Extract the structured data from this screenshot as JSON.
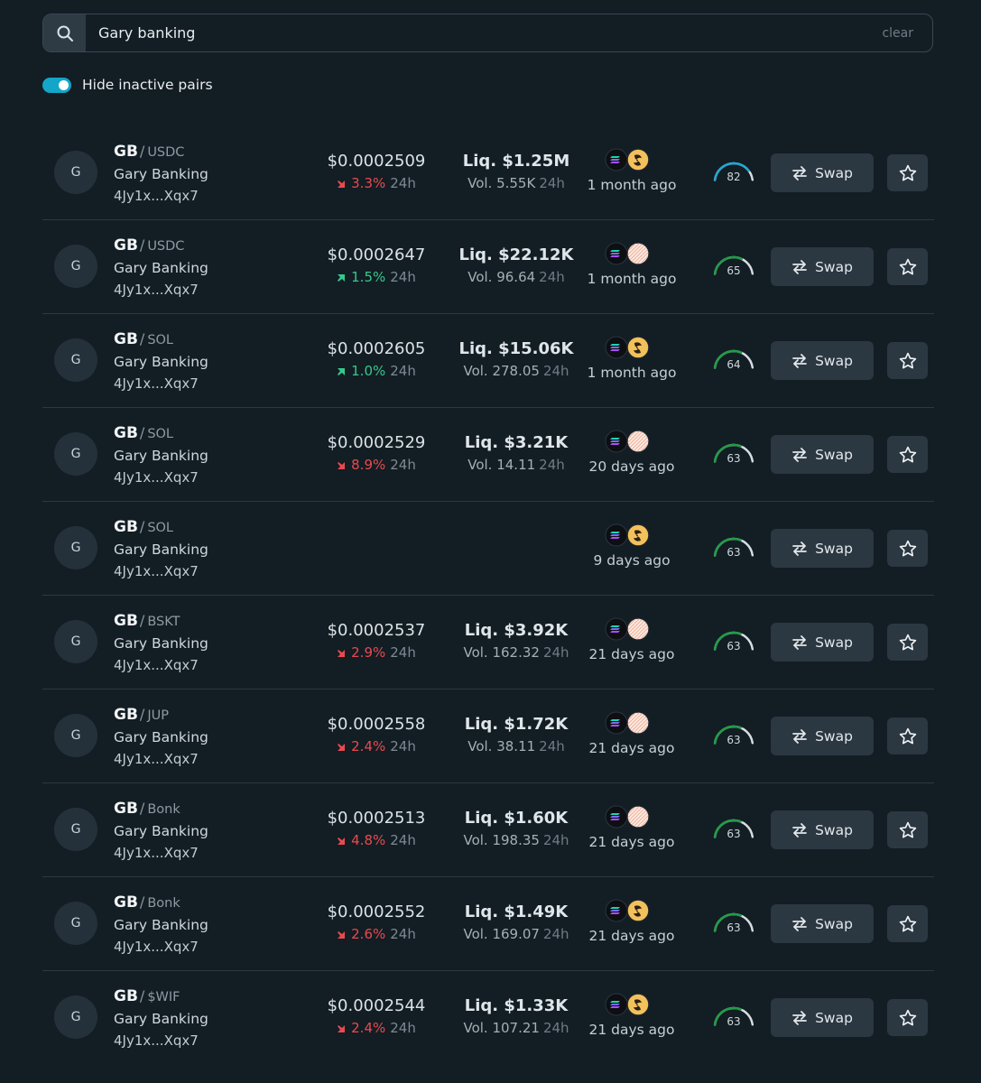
{
  "search": {
    "value": "Gary banking",
    "clear_label": "clear",
    "icon": "search-icon"
  },
  "filters": {
    "hide_inactive_label": "Hide inactive pairs",
    "hide_inactive_on": true,
    "toggle_color": "#13a6c9"
  },
  "colors": {
    "down": "#e84a4f",
    "up": "#34c98b",
    "gauge_blue": "#1ea7d4",
    "gauge_green": "#1f9d46"
  },
  "pairs": [
    {
      "avatar": "G",
      "base": "GB",
      "slash": "/",
      "quote": "USDC",
      "name": "Gary Banking",
      "address": "4Jy1x...Xqx7",
      "price": "$0.0002509",
      "change": "3.3%",
      "direction": "down",
      "period": "24h",
      "liquidity": "Liq. $1.25M",
      "volume": "Vol. 5.55K",
      "vol_period": "24h",
      "dex": [
        "solana-icon",
        "yellow-dex-icon"
      ],
      "age": "1 month ago",
      "score": "82",
      "score_fraction": 0.82,
      "score_color": "blue",
      "swap_label": "Swap"
    },
    {
      "avatar": "G",
      "base": "GB",
      "slash": "/",
      "quote": "USDC",
      "name": "Gary Banking",
      "address": "4Jy1x...Xqx7",
      "price": "$0.0002647",
      "change": "1.5%",
      "direction": "up",
      "period": "24h",
      "liquidity": "Liq. $22.12K",
      "volume": "Vol. 96.64",
      "vol_period": "24h",
      "dex": [
        "solana-icon",
        "striped-dex-icon"
      ],
      "age": "1 month ago",
      "score": "65",
      "score_fraction": 0.65,
      "score_color": "green",
      "swap_label": "Swap"
    },
    {
      "avatar": "G",
      "base": "GB",
      "slash": "/",
      "quote": "SOL",
      "name": "Gary Banking",
      "address": "4Jy1x...Xqx7",
      "price": "$0.0002605",
      "change": "1.0%",
      "direction": "up",
      "period": "24h",
      "liquidity": "Liq. $15.06K",
      "volume": "Vol. 278.05",
      "vol_period": "24h",
      "dex": [
        "solana-icon",
        "yellow-dex-icon"
      ],
      "age": "1 month ago",
      "score": "64",
      "score_fraction": 0.64,
      "score_color": "green",
      "swap_label": "Swap"
    },
    {
      "avatar": "G",
      "base": "GB",
      "slash": "/",
      "quote": "SOL",
      "name": "Gary Banking",
      "address": "4Jy1x...Xqx7",
      "price": "$0.0002529",
      "change": "8.9%",
      "direction": "down",
      "period": "24h",
      "liquidity": "Liq. $3.21K",
      "volume": "Vol. 14.11",
      "vol_period": "24h",
      "dex": [
        "solana-icon",
        "striped-dex-icon"
      ],
      "age": "20 days ago",
      "score": "63",
      "score_fraction": 0.63,
      "score_color": "green",
      "swap_label": "Swap"
    },
    {
      "avatar": "G",
      "base": "GB",
      "slash": "/",
      "quote": "SOL",
      "name": "Gary Banking",
      "address": "4Jy1x...Xqx7",
      "price": "",
      "change": "",
      "direction": "none",
      "period": "",
      "liquidity": "",
      "volume": "",
      "vol_period": "",
      "dex": [
        "solana-icon",
        "yellow-dex-icon"
      ],
      "age": "9 days ago",
      "score": "63",
      "score_fraction": 0.63,
      "score_color": "green",
      "swap_label": "Swap"
    },
    {
      "avatar": "G",
      "base": "GB",
      "slash": "/",
      "quote": "BSKT",
      "name": "Gary Banking",
      "address": "4Jy1x...Xqx7",
      "price": "$0.0002537",
      "change": "2.9%",
      "direction": "down",
      "period": "24h",
      "liquidity": "Liq. $3.92K",
      "volume": "Vol. 162.32",
      "vol_period": "24h",
      "dex": [
        "solana-icon",
        "striped-dex-icon"
      ],
      "age": "21 days ago",
      "score": "63",
      "score_fraction": 0.63,
      "score_color": "green",
      "swap_label": "Swap"
    },
    {
      "avatar": "G",
      "base": "GB",
      "slash": "/",
      "quote": "JUP",
      "name": "Gary Banking",
      "address": "4Jy1x...Xqx7",
      "price": "$0.0002558",
      "change": "2.4%",
      "direction": "down",
      "period": "24h",
      "liquidity": "Liq. $1.72K",
      "volume": "Vol. 38.11",
      "vol_period": "24h",
      "dex": [
        "solana-icon",
        "striped-dex-icon"
      ],
      "age": "21 days ago",
      "score": "63",
      "score_fraction": 0.63,
      "score_color": "green",
      "swap_label": "Swap"
    },
    {
      "avatar": "G",
      "base": "GB",
      "slash": "/",
      "quote": "Bonk",
      "name": "Gary Banking",
      "address": "4Jy1x...Xqx7",
      "price": "$0.0002513",
      "change": "4.8%",
      "direction": "down",
      "period": "24h",
      "liquidity": "Liq. $1.60K",
      "volume": "Vol. 198.35",
      "vol_period": "24h",
      "dex": [
        "solana-icon",
        "striped-dex-icon"
      ],
      "age": "21 days ago",
      "score": "63",
      "score_fraction": 0.63,
      "score_color": "green",
      "swap_label": "Swap"
    },
    {
      "avatar": "G",
      "base": "GB",
      "slash": "/",
      "quote": "Bonk",
      "name": "Gary Banking",
      "address": "4Jy1x...Xqx7",
      "price": "$0.0002552",
      "change": "2.6%",
      "direction": "down",
      "period": "24h",
      "liquidity": "Liq. $1.49K",
      "volume": "Vol. 169.07",
      "vol_period": "24h",
      "dex": [
        "solana-icon",
        "yellow-dex-icon"
      ],
      "age": "21 days ago",
      "score": "63",
      "score_fraction": 0.63,
      "score_color": "green",
      "swap_label": "Swap"
    },
    {
      "avatar": "G",
      "base": "GB",
      "slash": "/",
      "quote": "$WIF",
      "name": "Gary Banking",
      "address": "4Jy1x...Xqx7",
      "price": "$0.0002544",
      "change": "2.4%",
      "direction": "down",
      "period": "24h",
      "liquidity": "Liq. $1.33K",
      "volume": "Vol. 107.21",
      "vol_period": "24h",
      "dex": [
        "solana-icon",
        "yellow-dex-icon"
      ],
      "age": "21 days ago",
      "score": "63",
      "score_fraction": 0.63,
      "score_color": "green",
      "swap_label": "Swap"
    }
  ]
}
